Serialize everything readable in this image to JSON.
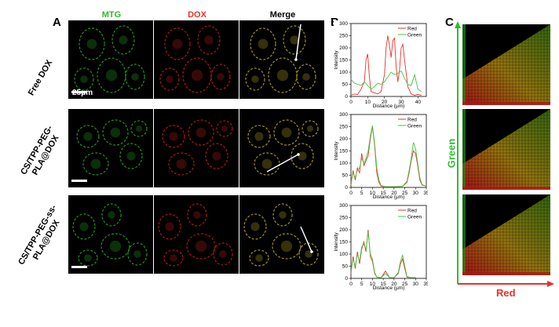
{
  "panels": {
    "A": "A",
    "B": "B",
    "C": "C"
  },
  "columns": [
    {
      "label": "MTG",
      "color": "#2ebd2e"
    },
    {
      "label": "DOX",
      "color": "#e8322a"
    },
    {
      "label": "Merge",
      "color": "#000000"
    }
  ],
  "rows": [
    {
      "label": "Free DOX"
    },
    {
      "label": "CS/TPP-PEG-\nPLA@DOX"
    },
    {
      "label": "CS/TPP-PEG-ss-\nPLA@DOX"
    }
  ],
  "scale_bar": "25μm",
  "heat_axes": {
    "y": "Green",
    "x": "Red",
    "y_color": "#2ebd2e",
    "x_color": "#e8322a"
  },
  "chart_data": [
    {
      "type": "line",
      "xlabel": "Distance (μm)",
      "ylabel": "Intensity",
      "xlim": [
        0,
        45
      ],
      "ylim": [
        0,
        300
      ],
      "xticks": [
        0,
        10,
        20,
        30,
        40
      ],
      "yticks": [
        0,
        50,
        100,
        150,
        200,
        250,
        300
      ],
      "legend": "top-right",
      "series": [
        {
          "name": "Red",
          "color": "#e8322a",
          "x": [
            0,
            2,
            4,
            6,
            8,
            9,
            10,
            11,
            12,
            14,
            16,
            18,
            20,
            21,
            22,
            23,
            24,
            25,
            26,
            27,
            28,
            29,
            30,
            31,
            32,
            34,
            36,
            38,
            40,
            42
          ],
          "y": [
            5,
            10,
            8,
            30,
            60,
            150,
            175,
            80,
            20,
            15,
            10,
            20,
            90,
            200,
            250,
            210,
            160,
            230,
            240,
            120,
            60,
            110,
            200,
            215,
            150,
            40,
            10,
            5,
            8,
            5
          ]
        },
        {
          "name": "Green",
          "color": "#3ec93e",
          "x": [
            0,
            2,
            4,
            6,
            8,
            10,
            12,
            14,
            16,
            18,
            20,
            22,
            24,
            26,
            28,
            30,
            32,
            34,
            36,
            38,
            40,
            42
          ],
          "y": [
            70,
            55,
            50,
            45,
            60,
            45,
            30,
            40,
            55,
            50,
            60,
            80,
            100,
            90,
            95,
            105,
            75,
            50,
            45,
            90,
            30,
            20
          ]
        }
      ]
    },
    {
      "type": "line",
      "xlabel": "Distance (μm)",
      "ylabel": "Intensity",
      "xlim": [
        0,
        35
      ],
      "ylim": [
        0,
        300
      ],
      "xticks": [
        0,
        5,
        10,
        15,
        20,
        25,
        30,
        35
      ],
      "yticks": [
        0,
        50,
        100,
        150,
        200,
        250,
        300
      ],
      "legend": "top-right",
      "series": [
        {
          "name": "Red",
          "color": "#e8322a",
          "x": [
            0,
            1,
            2,
            3,
            4,
            5,
            6,
            7,
            8,
            9,
            10,
            11,
            12,
            13,
            14,
            16,
            20,
            24,
            26,
            27,
            28,
            29,
            30,
            31,
            32,
            33,
            35
          ],
          "y": [
            10,
            70,
            30,
            80,
            60,
            140,
            90,
            110,
            130,
            200,
            250,
            170,
            60,
            20,
            5,
            3,
            3,
            5,
            20,
            60,
            110,
            150,
            140,
            90,
            30,
            10,
            5
          ]
        },
        {
          "name": "Green",
          "color": "#3ec93e",
          "x": [
            0,
            1,
            2,
            3,
            4,
            5,
            6,
            7,
            8,
            9,
            10,
            11,
            12,
            13,
            14,
            16,
            20,
            24,
            26,
            27,
            28,
            29,
            30,
            31,
            32,
            33,
            35
          ],
          "y": [
            20,
            60,
            40,
            70,
            80,
            120,
            100,
            120,
            150,
            210,
            255,
            180,
            80,
            30,
            8,
            3,
            3,
            5,
            25,
            70,
            120,
            185,
            160,
            100,
            40,
            12,
            5
          ]
        }
      ]
    },
    {
      "type": "line",
      "xlabel": "Distance (μm)",
      "ylabel": "Intensity",
      "xlim": [
        0,
        35
      ],
      "ylim": [
        0,
        300
      ],
      "xticks": [
        0,
        5,
        10,
        15,
        20,
        25,
        30,
        35
      ],
      "yticks": [
        0,
        50,
        100,
        150,
        200,
        250,
        300
      ],
      "legend": "top-right",
      "series": [
        {
          "name": "Red",
          "color": "#e8322a",
          "x": [
            0,
            1,
            2,
            3,
            4,
            5,
            6,
            7,
            8,
            9,
            10,
            11,
            12,
            14,
            16,
            18,
            20,
            22,
            23,
            24,
            25,
            26,
            28,
            30
          ],
          "y": [
            20,
            90,
            40,
            110,
            60,
            120,
            150,
            110,
            200,
            90,
            70,
            20,
            5,
            3,
            30,
            3,
            3,
            20,
            60,
            80,
            40,
            5,
            3,
            3
          ]
        },
        {
          "name": "Green",
          "color": "#3ec93e",
          "x": [
            0,
            1,
            2,
            3,
            4,
            5,
            6,
            7,
            8,
            9,
            10,
            11,
            12,
            14,
            16,
            18,
            20,
            22,
            23,
            24,
            25,
            26,
            28,
            30
          ],
          "y": [
            30,
            80,
            50,
            100,
            70,
            130,
            140,
            120,
            190,
            100,
            80,
            25,
            5,
            3,
            20,
            3,
            3,
            25,
            70,
            95,
            50,
            8,
            3,
            3
          ]
        }
      ]
    }
  ]
}
